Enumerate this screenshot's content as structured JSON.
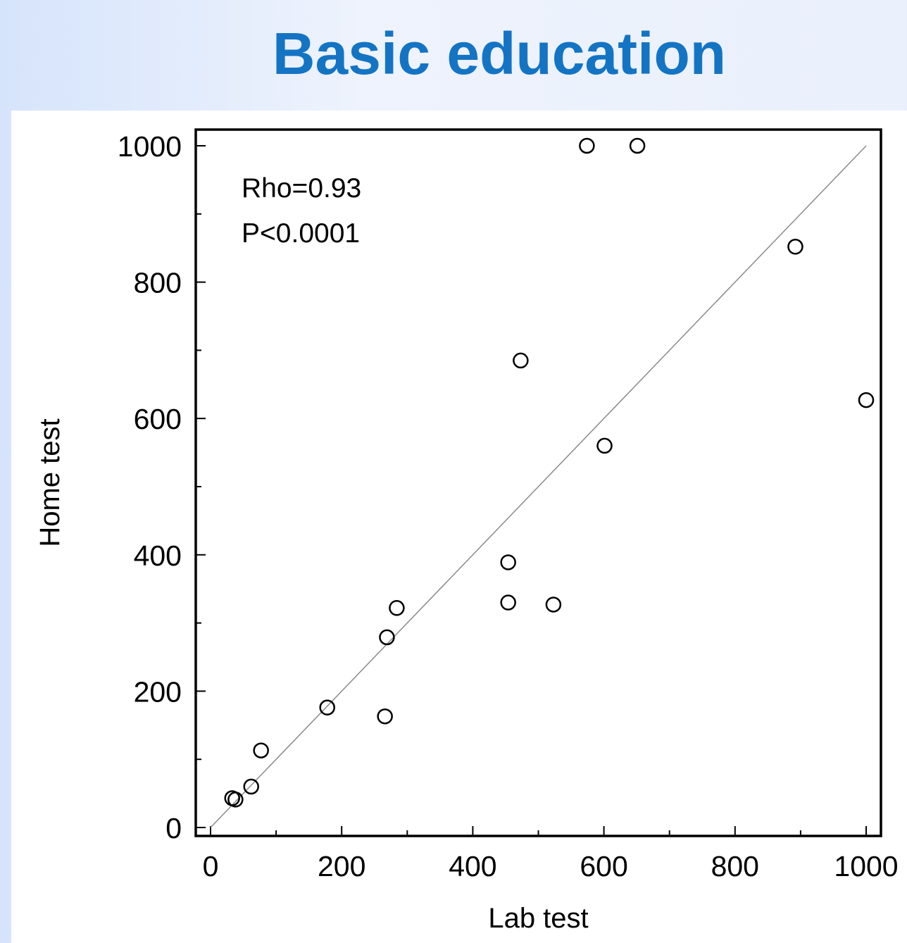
{
  "title": "Basic education",
  "chart_data": {
    "type": "scatter",
    "xlabel": "Lab test",
    "ylabel": "Home test",
    "xlim": [
      0,
      1000
    ],
    "ylim": [
      0,
      1000
    ],
    "xticks": [
      0,
      200,
      400,
      600,
      800,
      1000
    ],
    "yticks": [
      0,
      200,
      400,
      600,
      800,
      1000
    ],
    "xtick_labels": [
      "0",
      "200",
      "400",
      "600",
      "800",
      "1000"
    ],
    "ytick_labels": [
      "0",
      "200",
      "400",
      "600",
      "800",
      "1000"
    ],
    "annotations": [
      "Rho=0.93",
      "P<0.0001"
    ],
    "reference_line": {
      "from": [
        0,
        0
      ],
      "to": [
        1000,
        1000
      ]
    },
    "grid": false,
    "marker": "open-circle",
    "points": [
      {
        "x": 33,
        "y": 43
      },
      {
        "x": 38,
        "y": 41
      },
      {
        "x": 62,
        "y": 60
      },
      {
        "x": 77,
        "y": 113
      },
      {
        "x": 178,
        "y": 176
      },
      {
        "x": 266,
        "y": 163
      },
      {
        "x": 269,
        "y": 279
      },
      {
        "x": 284,
        "y": 322
      },
      {
        "x": 454,
        "y": 389
      },
      {
        "x": 454,
        "y": 330
      },
      {
        "x": 473,
        "y": 685
      },
      {
        "x": 523,
        "y": 327
      },
      {
        "x": 574,
        "y": 1000
      },
      {
        "x": 601,
        "y": 560
      },
      {
        "x": 651,
        "y": 1000
      },
      {
        "x": 892,
        "y": 852
      },
      {
        "x": 1000,
        "y": 627
      }
    ]
  }
}
